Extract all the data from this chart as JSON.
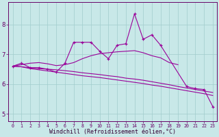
{
  "xlabel": "Windchill (Refroidissement éolien,°C)",
  "bg_color": "#c8e8e8",
  "line_color": "#990099",
  "grid_color": "#a0cccc",
  "xlim_min": -0.5,
  "xlim_max": 23.5,
  "ylim_min": 4.75,
  "ylim_max": 8.75,
  "yticks": [
    5,
    6,
    7,
    8
  ],
  "xticks": [
    0,
    1,
    2,
    3,
    4,
    5,
    6,
    7,
    8,
    9,
    10,
    11,
    12,
    13,
    14,
    15,
    16,
    17,
    18,
    19,
    20,
    21,
    22,
    23
  ],
  "line1_x": [
    0,
    1,
    2,
    3,
    4,
    5,
    6,
    7,
    8,
    9,
    10,
    11,
    12,
    13,
    14,
    15,
    16,
    17,
    20,
    21,
    22,
    23
  ],
  "line1_y": [
    6.6,
    6.7,
    6.55,
    6.55,
    6.5,
    6.4,
    6.7,
    7.4,
    7.4,
    7.4,
    7.1,
    6.85,
    7.3,
    7.35,
    8.35,
    7.5,
    7.65,
    7.3,
    5.92,
    5.85,
    5.82,
    5.25
  ],
  "line2_x": [
    0,
    1,
    2,
    3,
    4,
    5,
    6,
    7,
    8,
    9,
    10,
    11,
    12,
    13,
    14,
    15,
    16,
    17,
    18,
    19
  ],
  "line2_y": [
    6.6,
    6.65,
    6.7,
    6.72,
    6.68,
    6.62,
    6.65,
    6.72,
    6.85,
    6.95,
    7.02,
    7.05,
    7.08,
    7.1,
    7.12,
    7.05,
    6.95,
    6.88,
    6.72,
    6.65
  ],
  "line3_x": [
    0,
    1,
    2,
    3,
    4,
    5,
    6,
    7,
    8,
    9,
    10,
    11,
    12,
    13,
    14,
    15,
    16,
    17,
    18,
    19,
    20,
    21,
    22,
    23
  ],
  "line3_y": [
    6.6,
    6.58,
    6.55,
    6.52,
    6.5,
    6.48,
    6.45,
    6.42,
    6.38,
    6.35,
    6.32,
    6.28,
    6.25,
    6.2,
    6.17,
    6.13,
    6.08,
    6.03,
    5.98,
    5.92,
    5.87,
    5.82,
    5.77,
    5.72
  ],
  "line4_x": [
    0,
    1,
    2,
    3,
    4,
    5,
    6,
    7,
    8,
    9,
    10,
    11,
    12,
    13,
    14,
    15,
    16,
    17,
    18,
    19,
    20,
    21,
    22,
    23
  ],
  "line4_y": [
    6.6,
    6.58,
    6.52,
    6.48,
    6.44,
    6.4,
    6.36,
    6.32,
    6.28,
    6.25,
    6.22,
    6.18,
    6.14,
    6.1,
    6.06,
    6.02,
    5.97,
    5.93,
    5.88,
    5.83,
    5.78,
    5.73,
    5.68,
    5.62
  ]
}
